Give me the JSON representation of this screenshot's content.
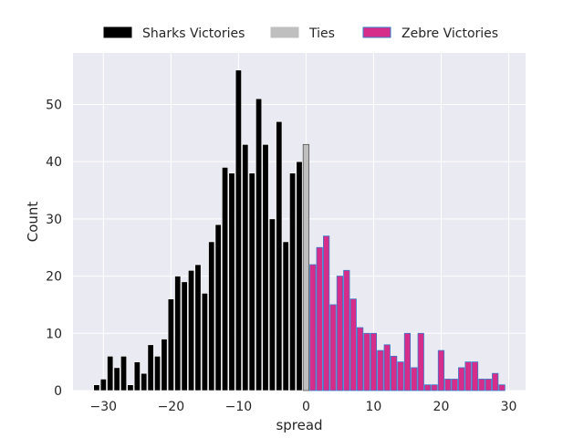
{
  "chart_data": {
    "type": "bar",
    "xlabel": "spread",
    "ylabel": "Count",
    "xlim": [
      -34.5,
      32.5
    ],
    "ylim": [
      0,
      59
    ],
    "xticks": [
      -30,
      -20,
      -10,
      0,
      10,
      20,
      30
    ],
    "yticks": [
      0,
      10,
      20,
      30,
      40,
      50
    ],
    "grid": true,
    "legend_position": "top",
    "colors": {
      "plot_background": "#eaeaf2",
      "grid": "#ffffff",
      "sharks": "#000000",
      "ties": "#bfbfbf",
      "zebre": "#d62d8a",
      "zebre_edge": "#3a7ac9",
      "text": "#262626"
    },
    "series": [
      {
        "name": "Sharks Victories",
        "x": [
          -31,
          -30,
          -29,
          -28,
          -27,
          -26,
          -25,
          -24,
          -23,
          -22,
          -21,
          -20,
          -19,
          -18,
          -17,
          -16,
          -15,
          -14,
          -13,
          -12,
          -11,
          -10,
          -9,
          -8,
          -7,
          -6,
          -5,
          -4,
          -3,
          -2,
          -1
        ],
        "values": [
          1,
          2,
          6,
          4,
          6,
          1,
          5,
          3,
          8,
          6,
          9,
          16,
          20,
          19,
          21,
          22,
          17,
          26,
          29,
          39,
          38,
          56,
          43,
          38,
          51,
          43,
          30,
          47,
          26,
          38,
          40
        ]
      },
      {
        "name": "Ties",
        "x": [
          0
        ],
        "values": [
          43
        ]
      },
      {
        "name": "Zebre Victories",
        "x": [
          1,
          2,
          3,
          4,
          5,
          6,
          7,
          8,
          9,
          10,
          11,
          12,
          13,
          14,
          15,
          16,
          17,
          18,
          19,
          20,
          21,
          22,
          23,
          24,
          25,
          26,
          27,
          28,
          29
        ],
        "values": [
          22,
          25,
          27,
          15,
          20,
          21,
          16,
          11,
          10,
          10,
          7,
          8,
          6,
          5,
          10,
          4,
          10,
          1,
          1,
          7,
          2,
          2,
          4,
          5,
          5,
          2,
          2,
          3,
          1
        ]
      }
    ]
  }
}
